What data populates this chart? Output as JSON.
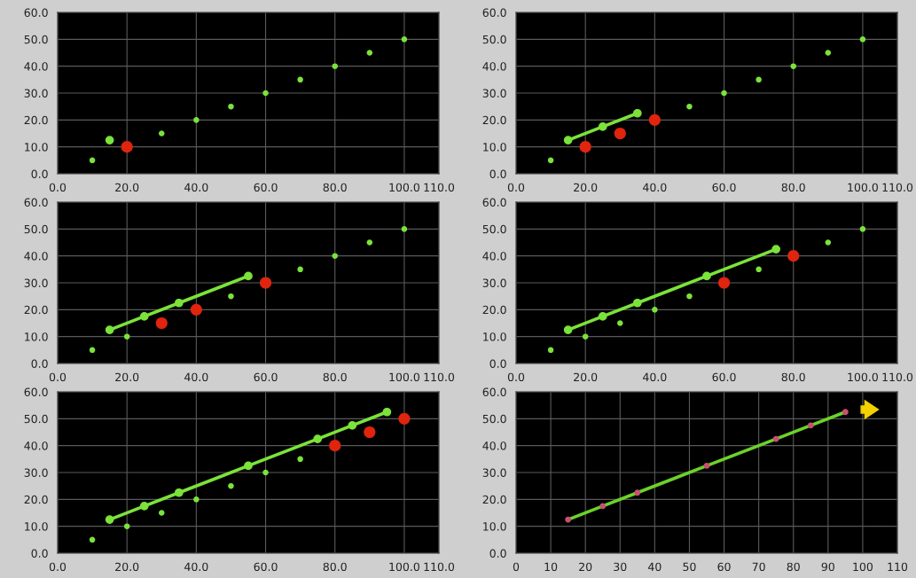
{
  "chart_data": [
    {
      "type": "scatter",
      "xlim": [
        0,
        110
      ],
      "ylim": [
        0,
        60
      ],
      "grid": true,
      "xticks": [
        {
          "value": 0,
          "label": "0.0"
        },
        {
          "value": 20,
          "label": "20.0"
        },
        {
          "value": 40,
          "label": "40.0"
        },
        {
          "value": 60,
          "label": "60.0"
        },
        {
          "value": 80,
          "label": "80.0"
        },
        {
          "value": 100,
          "label": "100.0"
        },
        {
          "value": 110,
          "label": "110.0"
        }
      ],
      "yticks": [
        {
          "value": 0,
          "label": "0.0"
        },
        {
          "value": 10,
          "label": "10.0"
        },
        {
          "value": 20,
          "label": "20.0"
        },
        {
          "value": 30,
          "label": "30.0"
        },
        {
          "value": 40,
          "label": "40.0"
        },
        {
          "value": 50,
          "label": "50.0"
        },
        {
          "value": 60,
          "label": "60.0"
        }
      ],
      "series": [
        {
          "type": "scatter",
          "color": "#7be33a",
          "x": [
            10,
            30,
            40,
            50,
            60,
            70,
            80,
            90,
            100
          ],
          "values": [
            5,
            15,
            20,
            25,
            30,
            35,
            40,
            45,
            50
          ]
        },
        {
          "type": "scatter",
          "color": "#e0240e",
          "x": [
            20
          ],
          "values": [
            10
          ]
        },
        {
          "type": "line",
          "marker": "circle",
          "color": "#7be33a",
          "x": [
            15
          ],
          "values": [
            12.5
          ]
        }
      ]
    },
    {
      "type": "scatter",
      "xlim": [
        0,
        110
      ],
      "ylim": [
        0,
        60
      ],
      "grid": true,
      "xticks": [
        {
          "value": 0,
          "label": "0.0"
        },
        {
          "value": 20,
          "label": "20.0"
        },
        {
          "value": 40,
          "label": "40.0"
        },
        {
          "value": 60,
          "label": "60.0"
        },
        {
          "value": 80,
          "label": "80.0"
        },
        {
          "value": 100,
          "label": "100.0"
        },
        {
          "value": 110,
          "label": "110.0"
        }
      ],
      "yticks": [
        {
          "value": 0,
          "label": "0.0"
        },
        {
          "value": 10,
          "label": "10.0"
        },
        {
          "value": 20,
          "label": "20.0"
        },
        {
          "value": 30,
          "label": "30.0"
        },
        {
          "value": 40,
          "label": "40.0"
        },
        {
          "value": 50,
          "label": "50.0"
        },
        {
          "value": 60,
          "label": "60.0"
        }
      ],
      "series": [
        {
          "type": "scatter",
          "color": "#7be33a",
          "x": [
            10,
            50,
            60,
            70,
            80,
            90,
            100
          ],
          "values": [
            5,
            25,
            30,
            35,
            40,
            45,
            50
          ]
        },
        {
          "type": "scatter",
          "color": "#e0240e",
          "x": [
            20,
            30,
            40
          ],
          "values": [
            10,
            15,
            20
          ]
        },
        {
          "type": "line",
          "marker": "circle",
          "color": "#7be33a",
          "x": [
            15,
            25,
            35
          ],
          "values": [
            12.5,
            17.5,
            22.5
          ]
        }
      ]
    },
    {
      "type": "scatter",
      "xlim": [
        0,
        110
      ],
      "ylim": [
        0,
        60
      ],
      "grid": true,
      "xticks": [
        {
          "value": 0,
          "label": "0.0"
        },
        {
          "value": 20,
          "label": "20.0"
        },
        {
          "value": 40,
          "label": "40.0"
        },
        {
          "value": 60,
          "label": "60.0"
        },
        {
          "value": 80,
          "label": "80.0"
        },
        {
          "value": 100,
          "label": "100.0"
        },
        {
          "value": 110,
          "label": "110.0"
        }
      ],
      "yticks": [
        {
          "value": 0,
          "label": "0.0"
        },
        {
          "value": 10,
          "label": "10.0"
        },
        {
          "value": 20,
          "label": "20.0"
        },
        {
          "value": 30,
          "label": "30.0"
        },
        {
          "value": 40,
          "label": "40.0"
        },
        {
          "value": 50,
          "label": "50.0"
        },
        {
          "value": 60,
          "label": "60.0"
        }
      ],
      "series": [
        {
          "type": "scatter",
          "color": "#7be33a",
          "x": [
            10,
            20,
            50,
            70,
            80,
            90,
            100
          ],
          "values": [
            5,
            10,
            25,
            35,
            40,
            45,
            50
          ]
        },
        {
          "type": "scatter",
          "color": "#e0240e",
          "x": [
            30,
            40,
            60
          ],
          "values": [
            15,
            20,
            30
          ]
        },
        {
          "type": "line",
          "marker": "circle",
          "color": "#7be33a",
          "x": [
            15,
            25,
            35,
            55
          ],
          "values": [
            12.5,
            17.5,
            22.5,
            32.5
          ]
        }
      ]
    },
    {
      "type": "scatter",
      "xlim": [
        0,
        110
      ],
      "ylim": [
        0,
        60
      ],
      "grid": true,
      "xticks": [
        {
          "value": 0,
          "label": "0.0"
        },
        {
          "value": 20,
          "label": "20.0"
        },
        {
          "value": 40,
          "label": "40.0"
        },
        {
          "value": 60,
          "label": "60.0"
        },
        {
          "value": 80,
          "label": "80.0"
        },
        {
          "value": 100,
          "label": "100.0"
        },
        {
          "value": 110,
          "label": "110.0"
        }
      ],
      "yticks": [
        {
          "value": 0,
          "label": "0.0"
        },
        {
          "value": 10,
          "label": "10.0"
        },
        {
          "value": 20,
          "label": "20.0"
        },
        {
          "value": 30,
          "label": "30.0"
        },
        {
          "value": 40,
          "label": "40.0"
        },
        {
          "value": 50,
          "label": "50.0"
        },
        {
          "value": 60,
          "label": "60.0"
        }
      ],
      "series": [
        {
          "type": "scatter",
          "color": "#7be33a",
          "x": [
            10,
            20,
            30,
            40,
            50,
            70,
            90,
            100
          ],
          "values": [
            5,
            10,
            15,
            20,
            25,
            35,
            45,
            50
          ]
        },
        {
          "type": "scatter",
          "color": "#e0240e",
          "x": [
            60,
            80
          ],
          "values": [
            30,
            40
          ]
        },
        {
          "type": "line",
          "marker": "circle",
          "color": "#7be33a",
          "x": [
            15,
            25,
            35,
            55,
            75
          ],
          "values": [
            12.5,
            17.5,
            22.5,
            32.5,
            42.5
          ]
        }
      ]
    },
    {
      "type": "scatter",
      "xlim": [
        0,
        110
      ],
      "ylim": [
        0,
        60
      ],
      "grid": true,
      "xticks": [
        {
          "value": 0,
          "label": "0.0"
        },
        {
          "value": 20,
          "label": "20.0"
        },
        {
          "value": 40,
          "label": "40.0"
        },
        {
          "value": 60,
          "label": "60.0"
        },
        {
          "value": 80,
          "label": "80.0"
        },
        {
          "value": 100,
          "label": "100.0"
        },
        {
          "value": 110,
          "label": "110.0"
        }
      ],
      "yticks": [
        {
          "value": 0,
          "label": "0.0"
        },
        {
          "value": 10,
          "label": "10.0"
        },
        {
          "value": 20,
          "label": "20.0"
        },
        {
          "value": 30,
          "label": "30.0"
        },
        {
          "value": 40,
          "label": "40.0"
        },
        {
          "value": 50,
          "label": "50.0"
        },
        {
          "value": 60,
          "label": "60.0"
        }
      ],
      "series": [
        {
          "type": "scatter",
          "color": "#7be33a",
          "x": [
            10,
            20,
            30,
            40,
            50,
            60,
            70
          ],
          "values": [
            5,
            10,
            15,
            20,
            25,
            30,
            35
          ]
        },
        {
          "type": "scatter",
          "color": "#e0240e",
          "x": [
            80,
            90,
            100
          ],
          "values": [
            40,
            45,
            50
          ]
        },
        {
          "type": "line",
          "marker": "circle",
          "color": "#7be33a",
          "x": [
            15,
            25,
            35,
            55,
            75,
            85,
            95
          ],
          "values": [
            12.5,
            17.5,
            22.5,
            32.5,
            42.5,
            47.5,
            52.5
          ]
        }
      ]
    },
    {
      "type": "line",
      "xlim": [
        0,
        110
      ],
      "ylim": [
        0,
        60
      ],
      "grid": true,
      "xticks": [
        0,
        10,
        20,
        30,
        40,
        50,
        60,
        70,
        80,
        90,
        100,
        110
      ],
      "yticks": [
        {
          "value": 0,
          "label": "0.0"
        },
        {
          "value": 10,
          "label": "10.0"
        },
        {
          "value": 20,
          "label": "20.0"
        },
        {
          "value": 30,
          "label": "30.0"
        },
        {
          "value": 40,
          "label": "40.0"
        },
        {
          "value": 50,
          "label": "50.0"
        },
        {
          "value": 60,
          "label": "60.0"
        }
      ],
      "series": [
        {
          "type": "line",
          "color": "#6cd22a",
          "x": [
            15,
            25,
            35,
            55,
            75,
            85,
            95
          ],
          "values": [
            12.5,
            17.5,
            22.5,
            32.5,
            42.5,
            47.5,
            52.5
          ]
        },
        {
          "type": "scatter",
          "color": "#c8506e",
          "x": [
            15,
            25,
            35,
            55,
            75,
            85,
            95
          ],
          "values": [
            12.5,
            17.5,
            22.5,
            32.5,
            42.5,
            47.5,
            52.5
          ]
        }
      ]
    }
  ]
}
